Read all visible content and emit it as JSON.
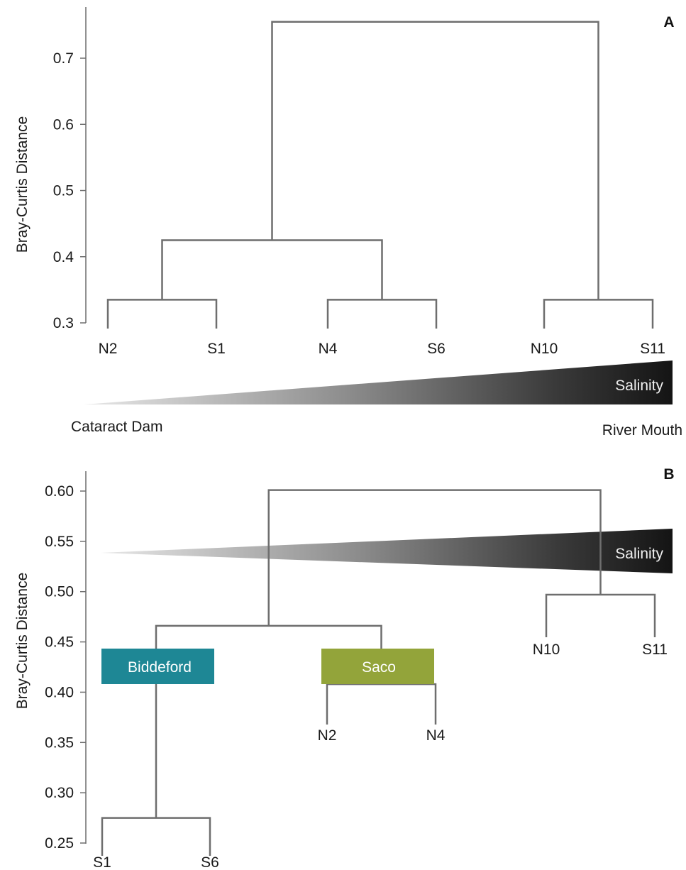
{
  "chart_data": [
    {
      "panel": "A",
      "type": "dendrogram",
      "ylabel": "Bray-Curtis Distance",
      "ylim": [
        0.3,
        0.75
      ],
      "yticks": [
        0.3,
        0.4,
        0.5,
        0.6,
        0.7
      ],
      "ytick_labels": [
        "0.3",
        "0.4",
        "0.5",
        "0.6",
        "0.7"
      ],
      "leaves": [
        "N2",
        "S1",
        "N4",
        "S6",
        "N10",
        "S11"
      ],
      "merges": [
        {
          "children": [
            "N2",
            "S1"
          ],
          "height": 0.335
        },
        {
          "children": [
            "N4",
            "S6"
          ],
          "height": 0.335
        },
        {
          "children": [
            "N10",
            "S11"
          ],
          "height": 0.335
        },
        {
          "children": [
            "N2+S1",
            "N4+S6"
          ],
          "height": 0.425
        },
        {
          "children": [
            "N2+S1+N4+S6",
            "N10+S11"
          ],
          "height": 0.755
        }
      ],
      "gradient": {
        "label": "Salinity",
        "start_label": "Cataract Dam",
        "end_label": "River Mouth"
      }
    },
    {
      "panel": "B",
      "type": "dendrogram",
      "ylabel": "Bray-Curtis Distance",
      "ylim": [
        0.25,
        0.6
      ],
      "yticks": [
        0.25,
        0.3,
        0.35,
        0.4,
        0.45,
        0.5,
        0.55,
        0.6
      ],
      "ytick_labels": [
        "0.25",
        "0.30",
        "0.35",
        "0.40",
        "0.45",
        "0.50",
        "0.55",
        "0.60"
      ],
      "leaves": [
        "S1",
        "S6",
        "N2",
        "N4",
        "N10",
        "S11"
      ],
      "merges": [
        {
          "children": [
            "S1",
            "S6"
          ],
          "height": 0.275
        },
        {
          "children": [
            "N2",
            "N4"
          ],
          "height": 0.408
        },
        {
          "children": [
            "S1+S6",
            "N2+N4"
          ],
          "height": 0.466
        },
        {
          "children": [
            "N10",
            "S11"
          ],
          "height": 0.497
        },
        {
          "children": [
            "S1+S6+N2+N4",
            "N10+S11"
          ],
          "height": 0.601
        }
      ],
      "groups": [
        {
          "label": "Biddeford",
          "color": "#1e8795"
        },
        {
          "label": "Saco",
          "color": "#93a43a"
        }
      ],
      "gradient": {
        "label": "Salinity"
      }
    }
  ]
}
